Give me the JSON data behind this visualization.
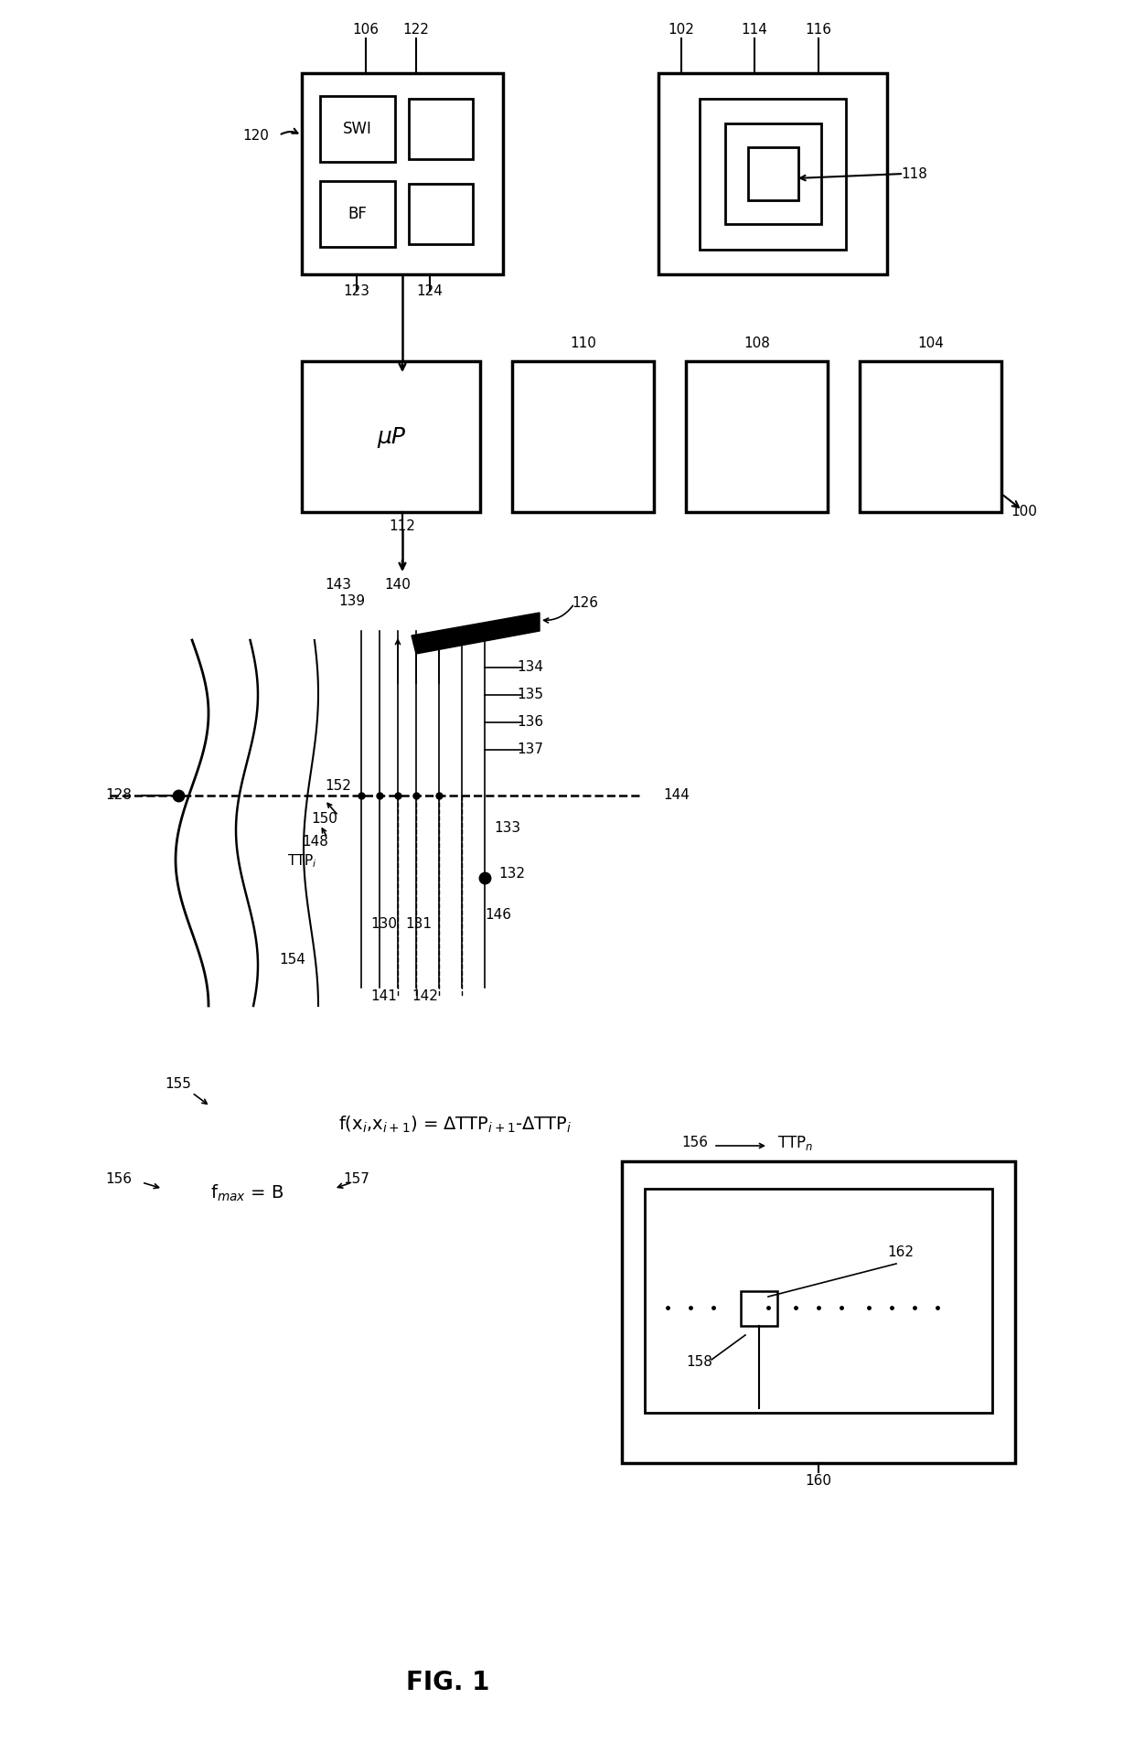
{
  "fig_label": "FIG. 1",
  "background_color": "#ffffff",
  "line_color": "#000000",
  "font_size_label": 11,
  "font_size_fignum": 20,
  "fig_num": "FIG. 1",
  "swi_label": "SWI",
  "bf_label": "BF",
  "mu_label": "μP",
  "formula1": "f(x$_i$,x$_{i+1}$) = ΔTTP$_{i+1}$-ΔTTP$_i$",
  "formula2": "f$_{max}$ = B",
  "ttp_i": "TTP$_i$",
  "ttp_n": "TTP$_n$"
}
